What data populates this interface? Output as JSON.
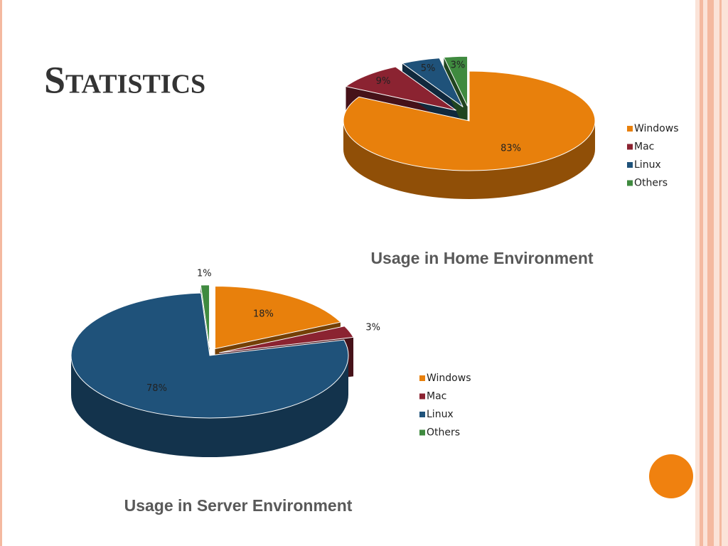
{
  "slide": {
    "title": "Statistics"
  },
  "chart_data": [
    {
      "type": "pie",
      "title": "Usage in Home Environment",
      "categories": [
        "Windows",
        "Mac",
        "Linux",
        "Others"
      ],
      "values": [
        83,
        9,
        5,
        3
      ],
      "value_labels": [
        "83%",
        "9%",
        "5%",
        "3%"
      ],
      "colors": [
        "#e8800c",
        "#8b2331",
        "#1f527a",
        "#3f8a3f"
      ],
      "legend": "right"
    },
    {
      "type": "pie",
      "title": "Usage in Server Environment",
      "categories": [
        "Windows",
        "Mac",
        "Linux",
        "Others"
      ],
      "values": [
        18,
        3,
        78,
        1
      ],
      "value_labels": [
        "18%",
        "3%",
        "78%",
        "1%"
      ],
      "colors": [
        "#e8800c",
        "#8b2331",
        "#1f527a",
        "#3f8a3f"
      ],
      "legend": "right"
    }
  ]
}
